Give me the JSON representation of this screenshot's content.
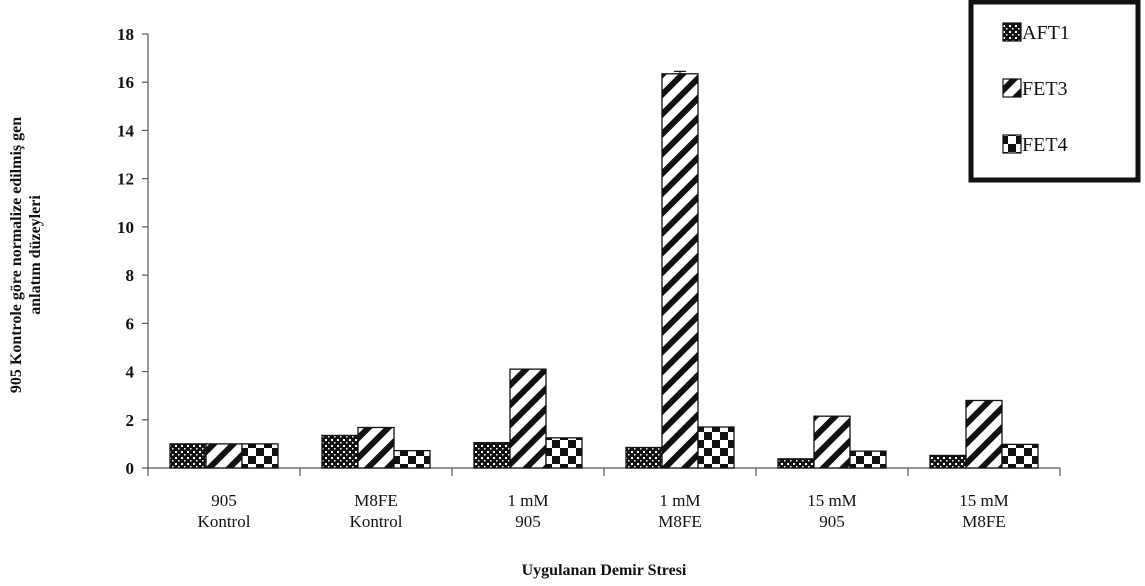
{
  "chart_data": {
    "type": "bar",
    "title": "",
    "xlabel": "Uygulanan Demir Stresi",
    "ylabel_lines": [
      "905 Kontrole göre normalize edilmiş gen",
      "anlatım düzeyleri"
    ],
    "ylim": [
      0,
      18
    ],
    "yticks": [
      0,
      2,
      4,
      6,
      8,
      10,
      12,
      14,
      16,
      18
    ],
    "categories": [
      [
        "905",
        "Kontrol"
      ],
      [
        "M8FE",
        "Kontrol"
      ],
      [
        "1 mM",
        "905"
      ],
      [
        "1 mM",
        "M8FE"
      ],
      [
        "15 mM",
        "905"
      ],
      [
        "15 mM",
        "M8FE"
      ]
    ],
    "series": [
      {
        "name": "AFT1",
        "pattern": "dots",
        "values": [
          1.0,
          1.35,
          1.05,
          0.85,
          0.38,
          0.52
        ]
      },
      {
        "name": "FET3",
        "pattern": "stripes",
        "values": [
          1.0,
          1.68,
          4.1,
          16.35,
          2.15,
          2.8
        ]
      },
      {
        "name": "FET4",
        "pattern": "checker",
        "values": [
          1.0,
          0.72,
          1.25,
          1.7,
          0.7,
          0.98
        ]
      }
    ],
    "error_bars": [
      {
        "series": "FET3",
        "category_index": 3,
        "value": 0.1
      }
    ],
    "grid": false,
    "legend_position": "top-right"
  }
}
